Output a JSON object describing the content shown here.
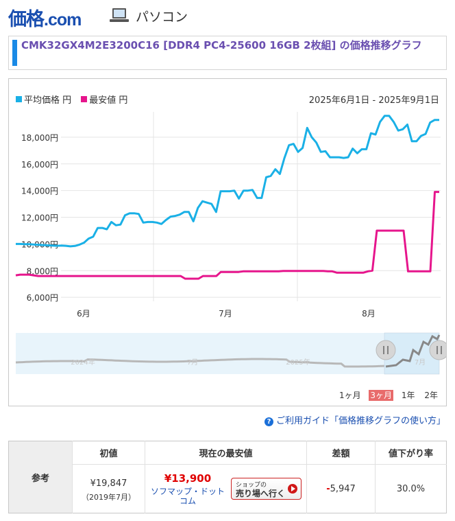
{
  "header": {
    "logo_text": "価格",
    "logo_suffix": ".com",
    "category": "パソコン"
  },
  "title": "CMK32GX4M2E3200C16 [DDR4 PC4-25600 16GB 2枚組] の価格推移グラフ",
  "legend": {
    "avg_label": "平均価格 円",
    "min_label": "最安値 円"
  },
  "date_range": "2025年6月1日 - 2025年9月1日",
  "colors": {
    "avg": "#1ab0e6",
    "min": "#e6158c",
    "accent": "#1a4fb0"
  },
  "nav_labels": [
    "2024年",
    "7月",
    "2025年",
    "7月"
  ],
  "range_buttons": [
    {
      "label": "1ヶ月",
      "active": false
    },
    {
      "label": "3ヶ月",
      "active": true
    },
    {
      "label": "1年",
      "active": false
    },
    {
      "label": "2年",
      "active": false
    }
  ],
  "guide_text": "ご利用ガイド「価格推移グラフの使い方」",
  "table": {
    "row_label": "参考",
    "headers": [
      "初値",
      "現在の最安値",
      "差額",
      "値下がり率"
    ],
    "initial_price": "¥19,847",
    "initial_date": "（2019年7月）",
    "current_price": "¥13,900",
    "shop_name": "ソフマップ・ドット\nコム",
    "shop_btn_top": "ショップの",
    "shop_btn_main": "売り場へ行く",
    "diff_sign": "-",
    "diff_value": "5,947",
    "drop_rate": "30.0%"
  },
  "chart_data": {
    "type": "line",
    "x_labels": [
      "6月",
      "7月",
      "8月"
    ],
    "y_ticks": [
      6000,
      8000,
      10000,
      12000,
      14000,
      16000,
      18000
    ],
    "y_tick_labels": [
      "6,000円",
      "8,000円",
      "10,000円",
      "12,000円",
      "14,000円",
      "16,000円",
      "18,000円"
    ],
    "ylim": [
      5700,
      19900
    ],
    "grid": true,
    "legend_position": "top-left",
    "series": [
      {
        "name": "平均価格 円",
        "values": [
          10000,
          10000,
          9980,
          9980,
          9960,
          9940,
          9920,
          9900,
          9880,
          9860,
          9880,
          9860,
          9820,
          9850,
          9950,
          10100,
          10400,
          10550,
          11200,
          11200,
          11100,
          11650,
          11400,
          11450,
          12150,
          12300,
          12300,
          12250,
          11600,
          11650,
          11650,
          11600,
          11500,
          11800,
          12050,
          12100,
          12200,
          12400,
          12400,
          11700,
          12700,
          13200,
          13100,
          13000,
          12400,
          13950,
          13950,
          13950,
          14000,
          13400,
          14000,
          14000,
          14050,
          13450,
          13450,
          15000,
          15100,
          15600,
          15250,
          16450,
          17400,
          17500,
          16900,
          17200,
          18700,
          18000,
          17600,
          16900,
          16950,
          16500,
          16500,
          16500,
          16450,
          16500,
          17150,
          16800,
          17100,
          17100,
          18300,
          18200,
          19150,
          19600,
          19600,
          19150,
          18500,
          18600,
          18950,
          17700,
          17700,
          18100,
          18250,
          19100,
          19300,
          19300
        ]
      },
      {
        "name": "最安値 円",
        "values": [
          7650,
          7700,
          7700,
          7700,
          7650,
          7600,
          7600,
          7600,
          7600,
          7600,
          7600,
          7600,
          7600,
          7600,
          7600,
          7600,
          7600,
          7600,
          7600,
          7600,
          7600,
          7600,
          7600,
          7600,
          7600,
          7600,
          7600,
          7600,
          7600,
          7600,
          7600,
          7600,
          7600,
          7600,
          7600,
          7600,
          7600,
          7600,
          7400,
          7400,
          7400,
          7400,
          7600,
          7600,
          7600,
          7600,
          7900,
          7900,
          7900,
          7900,
          7900,
          7950,
          7950,
          7950,
          7950,
          7950,
          7950,
          7950,
          7950,
          7950,
          7980,
          7980,
          7980,
          7980,
          7980,
          7980,
          7980,
          7980,
          7980,
          7980,
          7950,
          7950,
          7850,
          7850,
          7850,
          7850,
          7850,
          7850,
          7850,
          7950,
          8000,
          11000,
          11000,
          11000,
          11000,
          11000,
          11000,
          11000,
          7950,
          7950,
          7950,
          7950,
          7950,
          7950,
          13900,
          13900
        ]
      }
    ]
  }
}
